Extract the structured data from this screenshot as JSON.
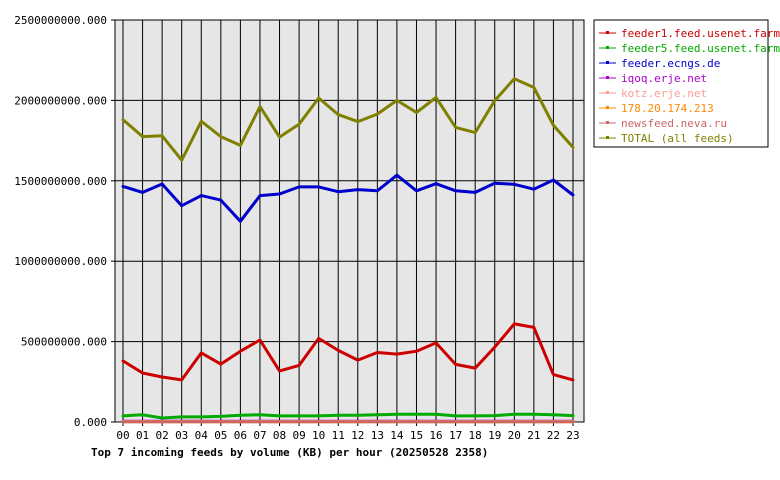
{
  "chart_data": {
    "type": "line",
    "title": "Top 7 incoming feeds by volume (KB) per hour (20250528 2358)",
    "categories": [
      "00",
      "01",
      "02",
      "03",
      "04",
      "05",
      "06",
      "07",
      "08",
      "09",
      "10",
      "11",
      "12",
      "13",
      "14",
      "15",
      "16",
      "17",
      "18",
      "19",
      "20",
      "21",
      "22",
      "23"
    ],
    "yticks": [
      "0.000",
      "500000000.000",
      "1000000000.000",
      "1500000000.000",
      "2000000000.000",
      "2500000000.000"
    ],
    "ylim": [
      0,
      2500000000
    ],
    "grid": true,
    "legend_position": "right",
    "series": [
      {
        "name": "feeder1.feed.usenet.farm",
        "color": "#cc0000",
        "values": [
          380000000,
          305000000,
          280000000,
          262000000,
          430000000,
          360000000,
          440000000,
          510000000,
          318000000,
          352000000,
          520000000,
          445000000,
          385000000,
          432000000,
          422000000,
          440000000,
          492000000,
          358000000,
          335000000,
          465000000,
          610000000,
          588000000,
          295000000,
          262000000
        ]
      },
      {
        "name": "feeder5.feed.usenet.farm",
        "color": "#00aa00",
        "values": [
          38000000,
          45000000,
          25000000,
          32000000,
          32000000,
          35000000,
          42000000,
          45000000,
          38000000,
          38000000,
          38000000,
          42000000,
          42000000,
          45000000,
          48000000,
          48000000,
          48000000,
          38000000,
          38000000,
          40000000,
          48000000,
          48000000,
          45000000,
          40000000
        ]
      },
      {
        "name": "feeder.ecngs.de",
        "color": "#0000cc",
        "values": [
          1465000000,
          1428000000,
          1480000000,
          1345000000,
          1408000000,
          1380000000,
          1248000000,
          1408000000,
          1418000000,
          1462000000,
          1462000000,
          1432000000,
          1445000000,
          1438000000,
          1535000000,
          1438000000,
          1482000000,
          1438000000,
          1428000000,
          1485000000,
          1478000000,
          1448000000,
          1505000000,
          1412000000
        ]
      },
      {
        "name": "iqoq.erje.net",
        "color": "#aa00cc",
        "values": [
          5000000,
          5000000,
          5000000,
          5000000,
          5000000,
          5000000,
          5000000,
          5000000,
          5000000,
          5000000,
          5000000,
          5000000,
          5000000,
          5000000,
          5000000,
          5000000,
          5000000,
          5000000,
          5000000,
          5000000,
          5000000,
          5000000,
          5000000,
          5000000
        ]
      },
      {
        "name": "kotz.erje.net",
        "color": "#ff9999",
        "values": [
          3000000,
          3000000,
          3000000,
          3000000,
          3000000,
          3000000,
          3000000,
          3000000,
          3000000,
          3000000,
          3000000,
          3000000,
          3000000,
          3000000,
          3000000,
          3000000,
          3000000,
          3000000,
          3000000,
          3000000,
          3000000,
          3000000,
          3000000,
          3000000
        ]
      },
      {
        "name": "178.20.174.213",
        "color": "#ff8800",
        "values": [
          2000000,
          2000000,
          2000000,
          2000000,
          2000000,
          2000000,
          2000000,
          2000000,
          2000000,
          2000000,
          2000000,
          2000000,
          2000000,
          2000000,
          2000000,
          2000000,
          2000000,
          2000000,
          2000000,
          2000000,
          2000000,
          2000000,
          2000000,
          2000000
        ]
      },
      {
        "name": "newsfeed.neva.ru",
        "color": "#cc6666",
        "values": [
          1000000,
          1000000,
          1000000,
          1000000,
          1000000,
          1000000,
          1000000,
          1000000,
          1000000,
          1000000,
          1000000,
          1000000,
          1000000,
          1000000,
          1000000,
          1000000,
          1000000,
          1000000,
          1000000,
          1000000,
          1000000,
          1000000,
          1000000,
          1000000
        ]
      },
      {
        "name": "TOTAL (all feeds)",
        "color": "#808000",
        "values": [
          1880000000,
          1775000000,
          1780000000,
          1628000000,
          1870000000,
          1775000000,
          1720000000,
          1962000000,
          1772000000,
          1852000000,
          2015000000,
          1912000000,
          1868000000,
          1915000000,
          2000000000,
          1925000000,
          2018000000,
          1832000000,
          1800000000,
          1998000000,
          2135000000,
          2080000000,
          1845000000,
          1708000000
        ]
      }
    ]
  }
}
